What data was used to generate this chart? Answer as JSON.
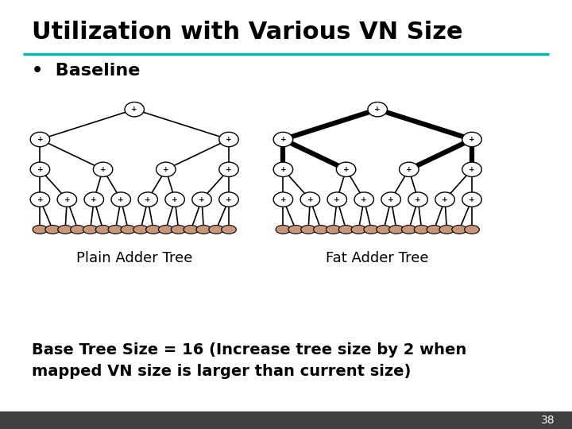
{
  "title": "Utilization with Various VN Size",
  "title_color": "#000000",
  "title_fontsize": 22,
  "rule_color": "#00B8B0",
  "bullet_text": "Baseline",
  "bullet_fontsize": 16,
  "plain_label": "Plain Adder Tree",
  "fat_label": "Fat Adder Tree",
  "label_fontsize": 13,
  "body_text_line1": "Base Tree Size = 16 (Increase tree size by 2 when",
  "body_text_line2": "mapped VN size is larger than current size)",
  "body_fontsize": 14,
  "node_color": "#ffffff",
  "node_edge_color": "#000000",
  "leaf_color": "#C8977A",
  "leaf_edge_color": "#000000",
  "thin_edge_width": 1.2,
  "fat_edge_width": 4.5,
  "footer_color": "#404040",
  "page_number": "38",
  "background_color": "#ffffff"
}
